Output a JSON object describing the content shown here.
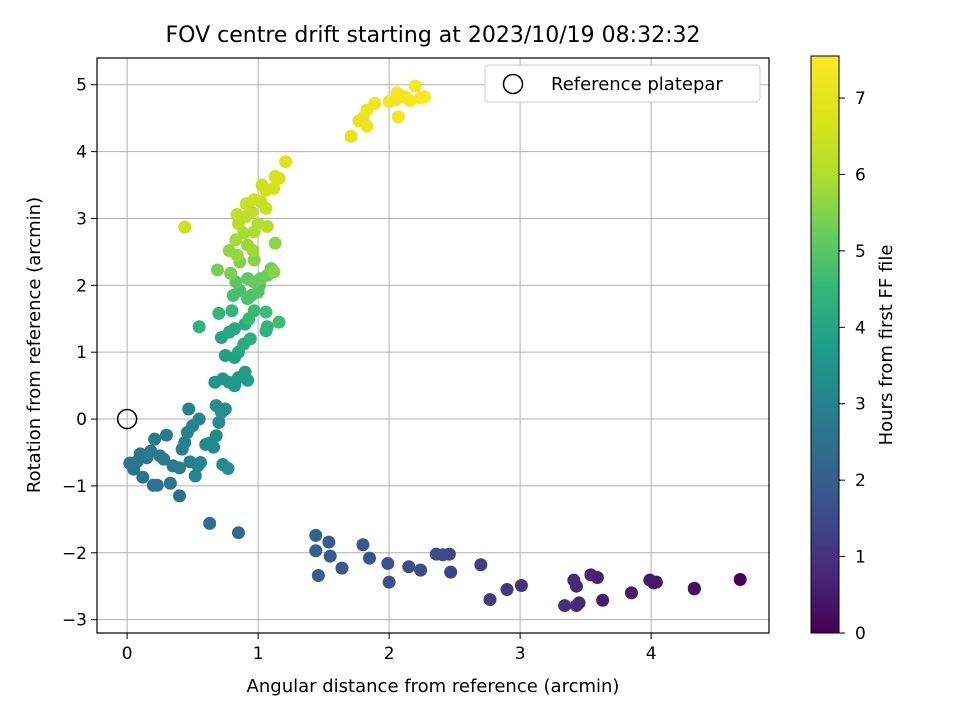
{
  "chart_data": {
    "type": "scatter",
    "title": "FOV centre drift starting at 2023/10/19 08:32:32",
    "xlabel": "Angular distance from reference (arcmin)",
    "ylabel": "Rotation from reference (arcmin)",
    "xlim": [
      -0.23,
      4.9
    ],
    "ylim": [
      -3.2,
      5.4
    ],
    "x_ticks": [
      "0",
      "1",
      "2",
      "3",
      "4"
    ],
    "y_ticks": [
      "−3",
      "−2",
      "−1",
      "0",
      "1",
      "2",
      "3",
      "4",
      "5"
    ],
    "grid": true,
    "colormap": "viridis",
    "colorbar": {
      "label": "Hours from first FF file",
      "range": [
        0,
        7.55
      ],
      "ticks": [
        "0",
        "1",
        "2",
        "3",
        "4",
        "5",
        "6",
        "7"
      ]
    },
    "legend": {
      "position": "top-right",
      "entries": [
        "Reference platepar"
      ]
    },
    "reference_point": {
      "x": 0,
      "y": 0
    },
    "series": [
      {
        "points": [
          {
            "x": 4.68,
            "y": -2.4,
            "c": 0.1
          },
          {
            "x": 4.33,
            "y": -2.53,
            "c": 0.25
          },
          {
            "x": 4.33,
            "y": -2.54,
            "c": 0.3
          },
          {
            "x": 4.04,
            "y": -2.44,
            "c": 0.35
          },
          {
            "x": 4.02,
            "y": -2.45,
            "c": 0.4
          },
          {
            "x": 3.99,
            "y": -2.41,
            "c": 0.45
          },
          {
            "x": 3.85,
            "y": -2.6,
            "c": 0.5
          },
          {
            "x": 3.63,
            "y": -2.71,
            "c": 0.55
          },
          {
            "x": 3.59,
            "y": -2.37,
            "c": 0.6
          },
          {
            "x": 3.54,
            "y": -2.33,
            "c": 0.65
          },
          {
            "x": 3.45,
            "y": -2.75,
            "c": 0.7
          },
          {
            "x": 3.43,
            "y": -2.79,
            "c": 0.75
          },
          {
            "x": 3.43,
            "y": -2.5,
            "c": 0.8
          },
          {
            "x": 3.41,
            "y": -2.41,
            "c": 0.85
          },
          {
            "x": 3.34,
            "y": -2.79,
            "c": 0.9
          },
          {
            "x": 3.01,
            "y": -2.49,
            "c": 1.0
          },
          {
            "x": 2.9,
            "y": -2.55,
            "c": 1.1
          },
          {
            "x": 2.77,
            "y": -2.7,
            "c": 1.2
          },
          {
            "x": 2.7,
            "y": -2.18,
            "c": 1.3
          },
          {
            "x": 2.47,
            "y": -2.29,
            "c": 1.4
          },
          {
            "x": 2.46,
            "y": -2.02,
            "c": 1.45
          },
          {
            "x": 2.41,
            "y": -2.03,
            "c": 1.5
          },
          {
            "x": 2.36,
            "y": -2.02,
            "c": 1.55
          },
          {
            "x": 2.24,
            "y": -2.26,
            "c": 1.6
          },
          {
            "x": 2.15,
            "y": -2.21,
            "c": 1.65
          },
          {
            "x": 2.0,
            "y": -2.44,
            "c": 1.7
          },
          {
            "x": 1.99,
            "y": -2.16,
            "c": 1.75
          },
          {
            "x": 1.85,
            "y": -2.08,
            "c": 1.8
          },
          {
            "x": 1.8,
            "y": -1.88,
            "c": 1.85
          },
          {
            "x": 1.64,
            "y": -2.23,
            "c": 1.9
          },
          {
            "x": 1.55,
            "y": -2.05,
            "c": 1.95
          },
          {
            "x": 1.54,
            "y": -1.84,
            "c": 2.0
          },
          {
            "x": 1.46,
            "y": -2.34,
            "c": 2.05
          },
          {
            "x": 1.44,
            "y": -1.97,
            "c": 2.1
          },
          {
            "x": 1.44,
            "y": -1.74,
            "c": 2.15
          },
          {
            "x": 0.85,
            "y": -1.7,
            "c": 2.3
          },
          {
            "x": 0.63,
            "y": -1.56,
            "c": 2.4
          },
          {
            "x": 0.4,
            "y": -1.15,
            "c": 2.45
          },
          {
            "x": 0.2,
            "y": -0.99,
            "c": 2.5
          },
          {
            "x": 0.23,
            "y": -0.99,
            "c": 2.55
          },
          {
            "x": 0.33,
            "y": -0.96,
            "c": 2.55
          },
          {
            "x": 0.12,
            "y": -0.87,
            "c": 2.6
          },
          {
            "x": 0.05,
            "y": -0.75,
            "c": 2.6
          },
          {
            "x": 0.02,
            "y": -0.66,
            "c": 2.65
          },
          {
            "x": 0.08,
            "y": -0.63,
            "c": 2.65
          },
          {
            "x": 0.1,
            "y": -0.52,
            "c": 2.7
          },
          {
            "x": 0.15,
            "y": -0.58,
            "c": 2.7
          },
          {
            "x": 0.18,
            "y": -0.48,
            "c": 2.75
          },
          {
            "x": 0.21,
            "y": -0.3,
            "c": 2.75
          },
          {
            "x": 0.25,
            "y": -0.55,
            "c": 2.8
          },
          {
            "x": 0.28,
            "y": -0.6,
            "c": 2.8
          },
          {
            "x": 0.3,
            "y": -0.24,
            "c": 2.85
          },
          {
            "x": 0.35,
            "y": -0.7,
            "c": 2.85
          },
          {
            "x": 0.4,
            "y": -0.73,
            "c": 2.9
          },
          {
            "x": 0.42,
            "y": -0.45,
            "c": 2.9
          },
          {
            "x": 0.44,
            "y": -0.35,
            "c": 2.95
          },
          {
            "x": 0.46,
            "y": -0.2,
            "c": 3.0
          },
          {
            "x": 0.48,
            "y": -0.64,
            "c": 3.0
          },
          {
            "x": 0.47,
            "y": 0.15,
            "c": 3.05
          },
          {
            "x": 0.5,
            "y": -0.1,
            "c": 3.05
          },
          {
            "x": 0.52,
            "y": -0.85,
            "c": 3.1
          },
          {
            "x": 0.54,
            "y": -0.7,
            "c": 3.1
          },
          {
            "x": 0.56,
            "y": -0.65,
            "c": 3.15
          },
          {
            "x": 0.55,
            "y": 0.0,
            "c": 3.15
          },
          {
            "x": 0.6,
            "y": -0.38,
            "c": 3.2
          },
          {
            "x": 0.63,
            "y": -0.36,
            "c": 3.2
          },
          {
            "x": 0.66,
            "y": -0.42,
            "c": 3.25
          },
          {
            "x": 0.68,
            "y": -0.25,
            "c": 3.25
          },
          {
            "x": 0.7,
            "y": -0.05,
            "c": 3.3
          },
          {
            "x": 0.73,
            "y": -0.68,
            "c": 3.3
          },
          {
            "x": 0.77,
            "y": -0.74,
            "c": 3.35
          },
          {
            "x": 0.68,
            "y": 0.2,
            "c": 3.35
          },
          {
            "x": 0.72,
            "y": 0.1,
            "c": 3.4
          },
          {
            "x": 0.75,
            "y": 0.15,
            "c": 3.4
          },
          {
            "x": 0.67,
            "y": 0.55,
            "c": 3.5
          },
          {
            "x": 0.73,
            "y": 0.6,
            "c": 3.55
          },
          {
            "x": 0.78,
            "y": 0.55,
            "c": 3.6
          },
          {
            "x": 0.82,
            "y": 0.5,
            "c": 3.65
          },
          {
            "x": 0.85,
            "y": 0.62,
            "c": 3.7
          },
          {
            "x": 0.9,
            "y": 0.7,
            "c": 3.75
          },
          {
            "x": 0.92,
            "y": 0.58,
            "c": 3.8
          },
          {
            "x": 0.75,
            "y": 0.95,
            "c": 3.85
          },
          {
            "x": 0.82,
            "y": 0.92,
            "c": 3.9
          },
          {
            "x": 0.85,
            "y": 1.0,
            "c": 3.95
          },
          {
            "x": 0.72,
            "y": 1.22,
            "c": 4.0
          },
          {
            "x": 0.78,
            "y": 1.3,
            "c": 4.05
          },
          {
            "x": 0.82,
            "y": 1.35,
            "c": 4.1
          },
          {
            "x": 0.89,
            "y": 1.12,
            "c": 4.15
          },
          {
            "x": 0.9,
            "y": 1.42,
            "c": 4.2
          },
          {
            "x": 0.94,
            "y": 1.2,
            "c": 4.25
          },
          {
            "x": 1.06,
            "y": 1.32,
            "c": 4.3
          },
          {
            "x": 1.07,
            "y": 1.38,
            "c": 4.35
          },
          {
            "x": 0.55,
            "y": 1.38,
            "c": 4.4
          },
          {
            "x": 0.7,
            "y": 1.58,
            "c": 4.45
          },
          {
            "x": 0.8,
            "y": 1.62,
            "c": 4.5
          },
          {
            "x": 0.93,
            "y": 1.5,
            "c": 4.55
          },
          {
            "x": 0.97,
            "y": 1.62,
            "c": 4.6
          },
          {
            "x": 1.06,
            "y": 1.6,
            "c": 4.65
          },
          {
            "x": 1.16,
            "y": 1.45,
            "c": 4.7
          },
          {
            "x": 0.81,
            "y": 1.85,
            "c": 4.75
          },
          {
            "x": 0.86,
            "y": 1.92,
            "c": 4.8
          },
          {
            "x": 0.92,
            "y": 1.8,
            "c": 4.85
          },
          {
            "x": 0.95,
            "y": 1.85,
            "c": 4.9
          },
          {
            "x": 1.0,
            "y": 1.9,
            "c": 4.95
          },
          {
            "x": 1.01,
            "y": 2.0,
            "c": 5.0
          },
          {
            "x": 0.83,
            "y": 2.05,
            "c": 5.05
          },
          {
            "x": 0.92,
            "y": 2.1,
            "c": 5.1
          },
          {
            "x": 0.97,
            "y": 2.05,
            "c": 5.15
          },
          {
            "x": 1.02,
            "y": 2.1,
            "c": 5.2
          },
          {
            "x": 1.07,
            "y": 2.15,
            "c": 5.25
          },
          {
            "x": 1.1,
            "y": 2.25,
            "c": 5.3
          },
          {
            "x": 0.69,
            "y": 2.23,
            "c": 5.35
          },
          {
            "x": 0.79,
            "y": 2.18,
            "c": 5.4
          },
          {
            "x": 0.86,
            "y": 2.35,
            "c": 5.45
          },
          {
            "x": 0.97,
            "y": 2.38,
            "c": 5.5
          },
          {
            "x": 1.12,
            "y": 2.2,
            "c": 5.55
          },
          {
            "x": 1.13,
            "y": 2.63,
            "c": 5.6
          },
          {
            "x": 0.78,
            "y": 2.52,
            "c": 5.65
          },
          {
            "x": 0.84,
            "y": 2.45,
            "c": 5.7
          },
          {
            "x": 0.92,
            "y": 2.6,
            "c": 5.75
          },
          {
            "x": 0.96,
            "y": 2.52,
            "c": 5.8
          },
          {
            "x": 0.83,
            "y": 2.68,
            "c": 5.85
          },
          {
            "x": 0.89,
            "y": 2.78,
            "c": 5.9
          },
          {
            "x": 0.97,
            "y": 2.8,
            "c": 5.95
          },
          {
            "x": 1.0,
            "y": 2.92,
            "c": 6.0
          },
          {
            "x": 1.07,
            "y": 2.88,
            "c": 6.05
          },
          {
            "x": 0.85,
            "y": 2.92,
            "c": 6.1
          },
          {
            "x": 0.91,
            "y": 3.03,
            "c": 6.15
          },
          {
            "x": 0.95,
            "y": 3.1,
            "c": 6.2
          },
          {
            "x": 0.84,
            "y": 3.06,
            "c": 6.25
          },
          {
            "x": 1.02,
            "y": 3.25,
            "c": 6.3
          },
          {
            "x": 1.06,
            "y": 3.15,
            "c": 6.35
          },
          {
            "x": 0.91,
            "y": 3.22,
            "c": 6.4
          },
          {
            "x": 0.97,
            "y": 3.28,
            "c": 6.45
          },
          {
            "x": 1.03,
            "y": 3.5,
            "c": 6.5
          },
          {
            "x": 1.06,
            "y": 3.42,
            "c": 6.55
          },
          {
            "x": 1.12,
            "y": 3.45,
            "c": 6.6
          },
          {
            "x": 1.13,
            "y": 3.63,
            "c": 6.65
          },
          {
            "x": 1.16,
            "y": 3.6,
            "c": 6.7
          },
          {
            "x": 1.21,
            "y": 3.85,
            "c": 6.75
          },
          {
            "x": 0.44,
            "y": 2.87,
            "c": 6.5
          },
          {
            "x": 1.71,
            "y": 4.23,
            "c": 6.95
          },
          {
            "x": 1.77,
            "y": 4.46,
            "c": 7.0
          },
          {
            "x": 1.8,
            "y": 4.5,
            "c": 7.05
          },
          {
            "x": 1.83,
            "y": 4.38,
            "c": 7.1
          },
          {
            "x": 1.83,
            "y": 4.62,
            "c": 7.15
          },
          {
            "x": 1.89,
            "y": 4.72,
            "c": 7.2
          },
          {
            "x": 2.07,
            "y": 4.52,
            "c": 7.25
          },
          {
            "x": 2.0,
            "y": 4.75,
            "c": 7.3
          },
          {
            "x": 2.05,
            "y": 4.78,
            "c": 7.32
          },
          {
            "x": 2.06,
            "y": 4.88,
            "c": 7.35
          },
          {
            "x": 2.12,
            "y": 4.82,
            "c": 7.38
          },
          {
            "x": 2.16,
            "y": 4.76,
            "c": 7.4
          },
          {
            "x": 2.2,
            "y": 4.98,
            "c": 7.42
          },
          {
            "x": 2.24,
            "y": 4.8,
            "c": 7.45
          },
          {
            "x": 2.27,
            "y": 4.82,
            "c": 7.5
          }
        ]
      }
    ]
  }
}
